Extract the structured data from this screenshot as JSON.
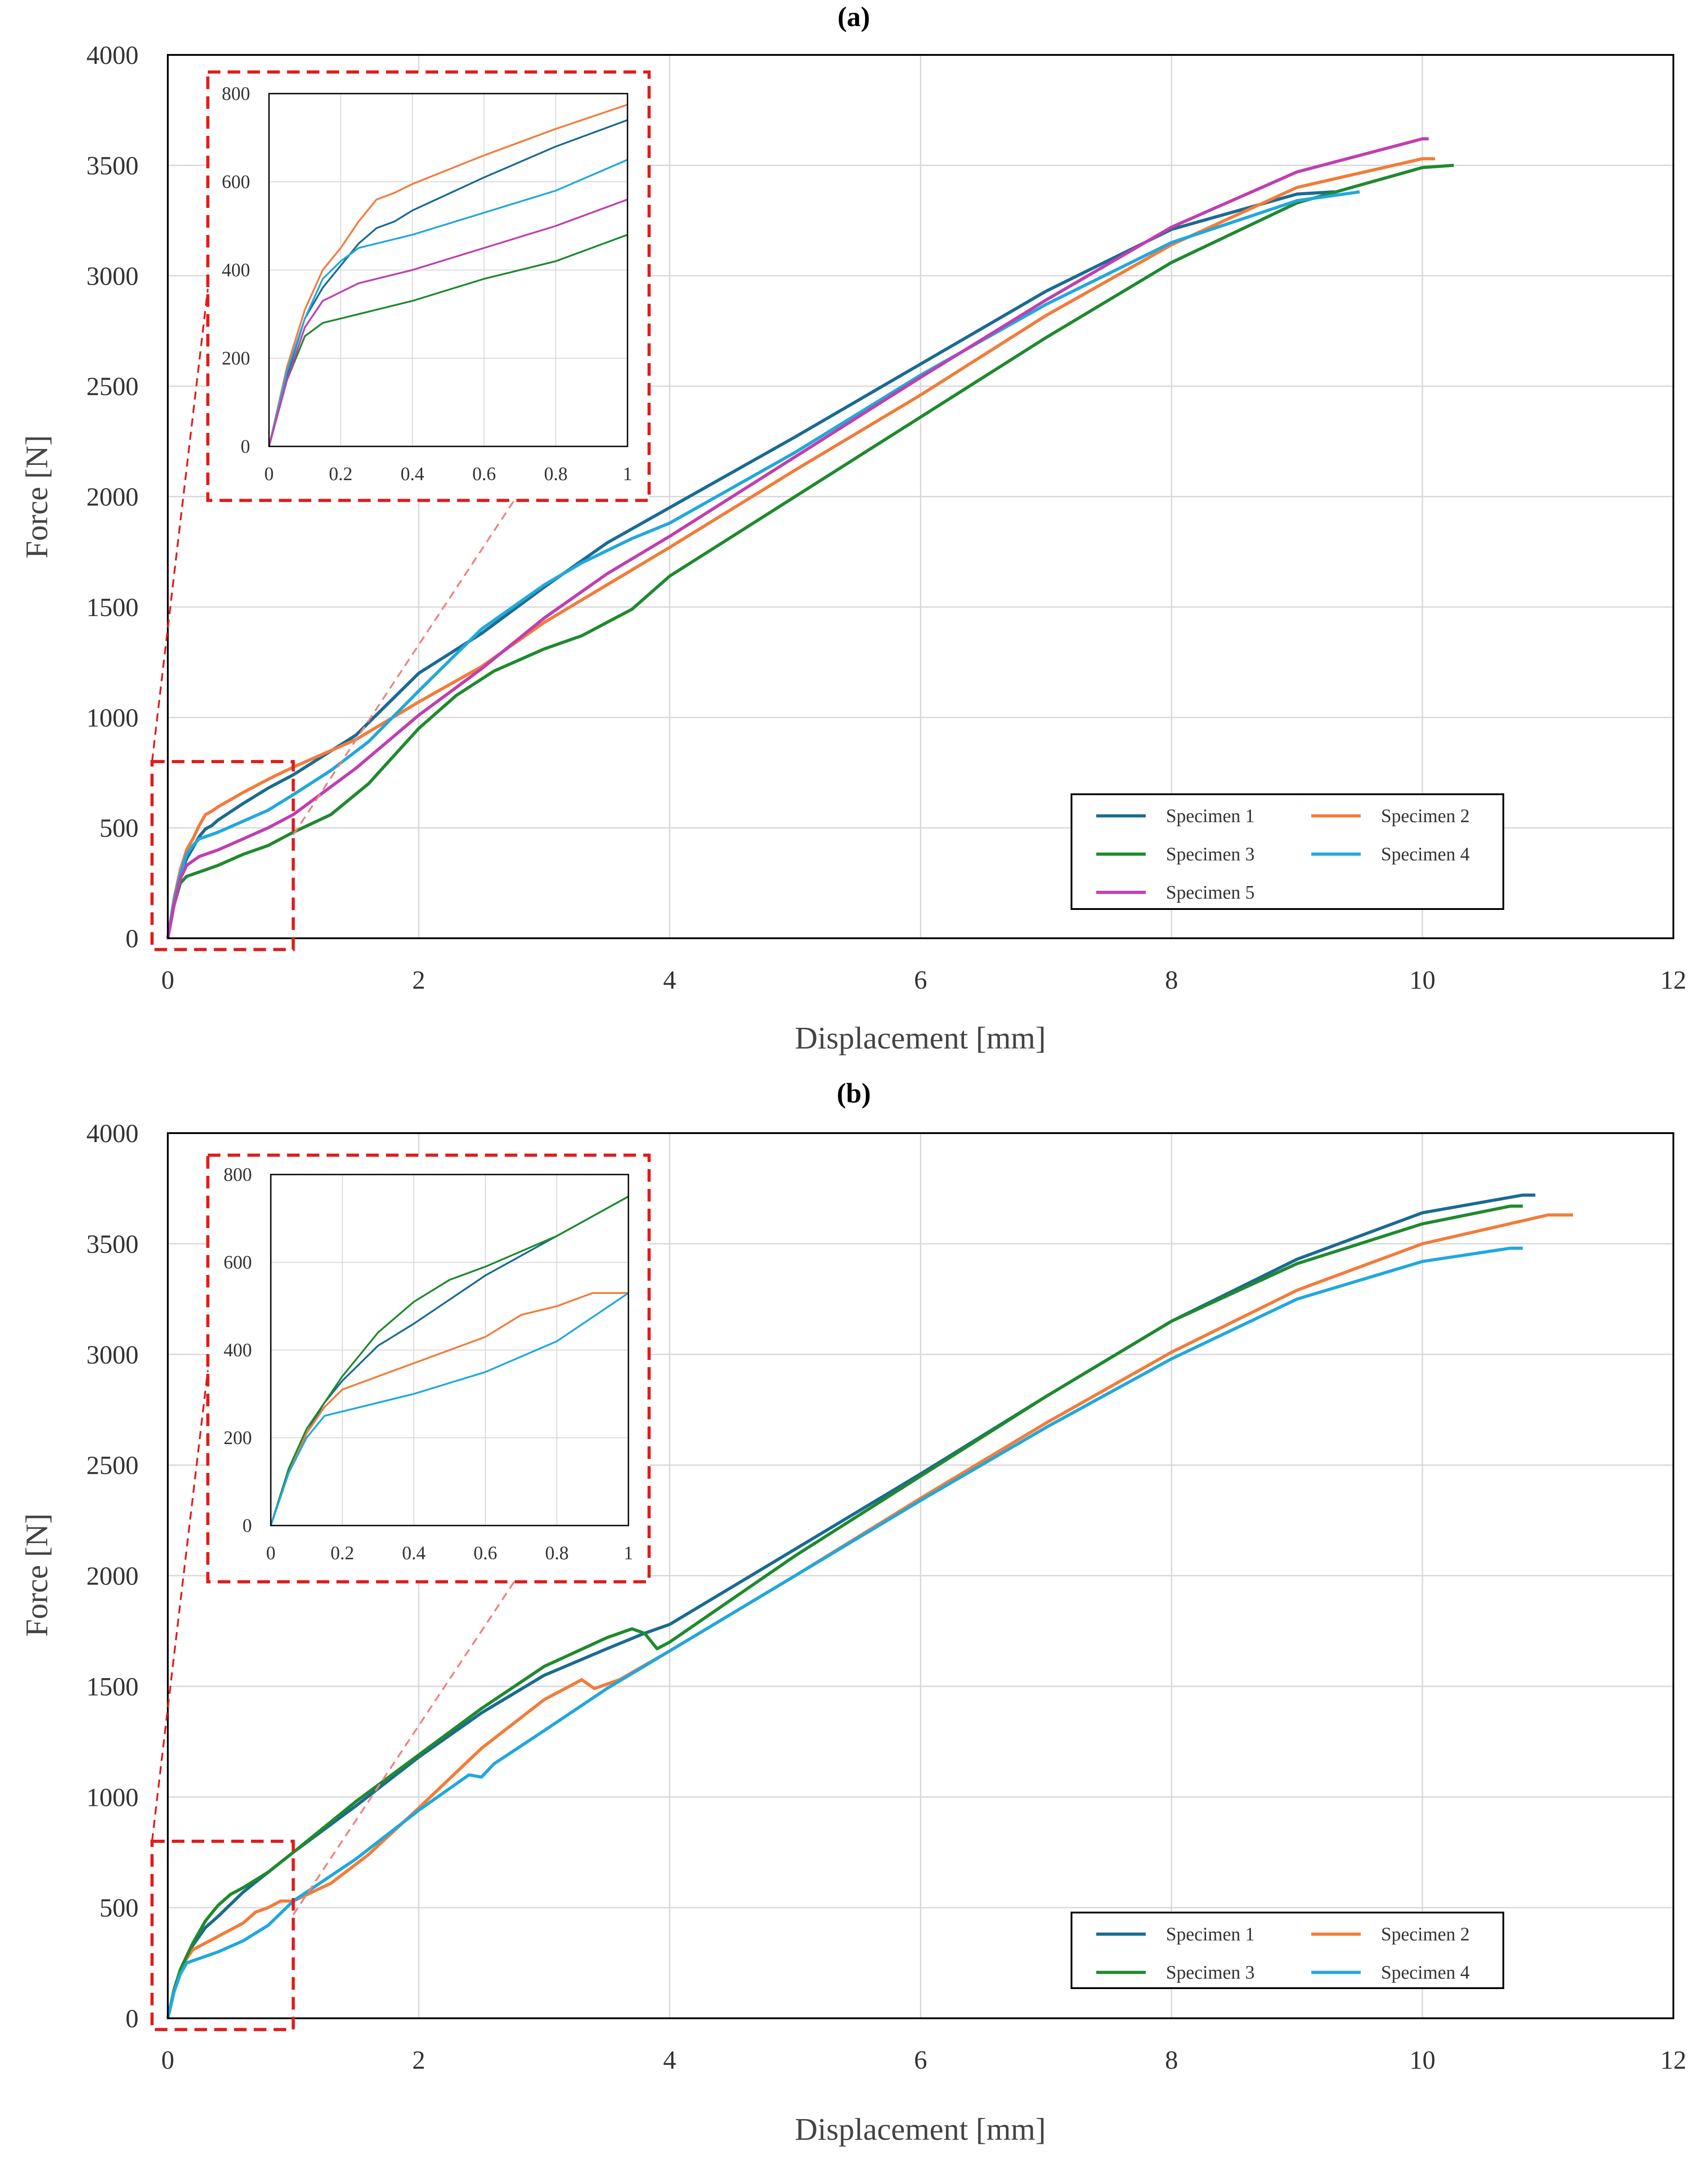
{
  "figure": {
    "panels": [
      "(a)",
      "(b)"
    ]
  },
  "colors": {
    "specimen1": "#1a6b92",
    "specimen2": "#f27c3a",
    "specimen3": "#1f8a2e",
    "specimen4": "#21a8dd",
    "specimen5": "#c03fb0",
    "grid": "#d9d9d9",
    "zoom_box": "#e11b1b"
  },
  "chart_data": [
    {
      "type": "line",
      "panel_label": "(a)",
      "xlabel": "Displacement [mm]",
      "ylabel": "Force [N]",
      "xlim": [
        0,
        12
      ],
      "ylim": [
        0,
        4000
      ],
      "xticks": [
        "0",
        "2",
        "4",
        "6",
        "8",
        "10",
        "12"
      ],
      "yticks": [
        "0",
        "500",
        "1000",
        "1500",
        "2000",
        "2500",
        "3000",
        "3500",
        "4000"
      ],
      "grid": true,
      "legend_position": "bottom-right",
      "series": [
        {
          "name": "Specimen 1",
          "color": "#1a6b92",
          "x": [
            0,
            0.05,
            0.1,
            0.15,
            0.2,
            0.25,
            0.3,
            0.35,
            0.4,
            0.6,
            0.8,
            1,
            1.5,
            2,
            2.5,
            3,
            3.5,
            4,
            5,
            6,
            7,
            8,
            9,
            9.3
          ],
          "y": [
            0,
            160,
            290,
            360,
            410,
            460,
            495,
            510,
            535,
            610,
            680,
            740,
            920,
            1200,
            1380,
            1590,
            1790,
            1950,
            2270,
            2600,
            2930,
            3210,
            3370,
            3380
          ]
        },
        {
          "name": "Specimen 2",
          "color": "#f27c3a",
          "x": [
            0,
            0.05,
            0.1,
            0.15,
            0.2,
            0.25,
            0.3,
            0.35,
            0.4,
            0.6,
            0.8,
            1,
            1.5,
            2,
            2.5,
            3,
            3.5,
            4,
            5,
            6,
            7,
            8,
            9,
            10,
            10.1
          ],
          "y": [
            0,
            180,
            310,
            400,
            450,
            510,
            560,
            575,
            595,
            660,
            720,
            775,
            900,
            1070,
            1230,
            1430,
            1600,
            1770,
            2120,
            2460,
            2820,
            3140,
            3400,
            3530,
            3530
          ]
        },
        {
          "name": "Specimen 3",
          "color": "#1f8a2e",
          "x": [
            0,
            0.05,
            0.1,
            0.15,
            0.2,
            0.25,
            0.3,
            0.4,
            0.6,
            0.8,
            1,
            1.3,
            1.6,
            2,
            2.3,
            2.6,
            3,
            3.3,
            3.7,
            4,
            5,
            6,
            7,
            8,
            9,
            10,
            10.25
          ],
          "y": [
            0,
            150,
            250,
            280,
            290,
            300,
            310,
            330,
            380,
            420,
            480,
            560,
            700,
            950,
            1100,
            1210,
            1310,
            1370,
            1490,
            1640,
            2000,
            2360,
            2720,
            3060,
            3330,
            3490,
            3500
          ]
        },
        {
          "name": "Specimen 4",
          "color": "#21a8dd",
          "x": [
            0,
            0.05,
            0.1,
            0.15,
            0.2,
            0.25,
            0.3,
            0.4,
            0.6,
            0.8,
            1,
            1.3,
            1.6,
            2,
            2.5,
            3,
            3.3,
            3.7,
            4,
            5,
            6,
            7,
            8,
            9,
            9.5
          ],
          "y": [
            0,
            170,
            290,
            380,
            420,
            450,
            460,
            480,
            530,
            580,
            650,
            760,
            890,
            1120,
            1400,
            1600,
            1700,
            1810,
            1880,
            2200,
            2550,
            2870,
            3150,
            3340,
            3380
          ]
        },
        {
          "name": "Specimen 5",
          "color": "#c03fb0",
          "x": [
            0,
            0.05,
            0.1,
            0.15,
            0.2,
            0.25,
            0.3,
            0.4,
            0.6,
            0.8,
            1,
            1.5,
            2,
            2.5,
            3,
            3.5,
            4,
            5,
            6,
            7,
            8,
            9,
            10,
            10.05
          ],
          "y": [
            0,
            150,
            270,
            330,
            350,
            370,
            380,
            400,
            450,
            500,
            560,
            770,
            1010,
            1220,
            1450,
            1650,
            1820,
            2180,
            2540,
            2890,
            3220,
            3470,
            3620,
            3620
          ]
        }
      ],
      "inset": {
        "xlim": [
          0,
          1
        ],
        "ylim": [
          0,
          800
        ],
        "xticks": [
          "0",
          "0.2",
          "0.4",
          "0.6",
          "0.8",
          "1"
        ],
        "yticks": [
          "0",
          "200",
          "400",
          "600",
          "800"
        ],
        "zoom_region": {
          "x": [
            0,
            1
          ],
          "y": [
            0,
            800
          ]
        }
      }
    },
    {
      "type": "line",
      "panel_label": "(b)",
      "xlabel": "Displacement [mm]",
      "ylabel": "Force [N]",
      "xlim": [
        0,
        12
      ],
      "ylim": [
        0,
        4000
      ],
      "xticks": [
        "0",
        "2",
        "4",
        "6",
        "8",
        "10",
        "12"
      ],
      "yticks": [
        "0",
        "500",
        "1000",
        "1500",
        "2000",
        "2500",
        "3000",
        "3500",
        "4000"
      ],
      "grid": true,
      "legend_position": "bottom-right",
      "series": [
        {
          "name": "Specimen 1",
          "color": "#1a6b92",
          "x": [
            0,
            0.05,
            0.1,
            0.15,
            0.2,
            0.3,
            0.4,
            0.6,
            0.8,
            1,
            1.5,
            2,
            2.5,
            3,
            3.5,
            3.8,
            4,
            5,
            6,
            7,
            8,
            9,
            10,
            10.8,
            10.9
          ],
          "y": [
            0,
            120,
            210,
            280,
            330,
            410,
            460,
            570,
            660,
            750,
            960,
            1180,
            1380,
            1550,
            1670,
            1740,
            1780,
            2120,
            2460,
            2810,
            3150,
            3430,
            3640,
            3720,
            3720
          ]
        },
        {
          "name": "Specimen 2",
          "color": "#f27c3a",
          "x": [
            0,
            0.05,
            0.1,
            0.15,
            0.2,
            0.3,
            0.4,
            0.6,
            0.7,
            0.8,
            0.9,
            1,
            1.3,
            1.6,
            2,
            2.5,
            3,
            3.3,
            3.4,
            3.6,
            4,
            5,
            6,
            7,
            8,
            9,
            10,
            11,
            11.2
          ],
          "y": [
            0,
            120,
            210,
            270,
            310,
            340,
            370,
            430,
            480,
            500,
            530,
            530,
            610,
            740,
            950,
            1220,
            1440,
            1530,
            1490,
            1530,
            1660,
            2000,
            2350,
            2690,
            3010,
            3290,
            3500,
            3630,
            3630
          ]
        },
        {
          "name": "Specimen 3",
          "color": "#1f8a2e",
          "x": [
            0,
            0.05,
            0.1,
            0.15,
            0.2,
            0.3,
            0.4,
            0.5,
            0.6,
            0.8,
            1,
            1.5,
            2,
            2.5,
            3,
            3.5,
            3.7,
            3.8,
            3.9,
            4,
            5,
            6,
            7,
            8,
            9,
            10,
            10.7,
            10.8
          ],
          "y": [
            0,
            130,
            220,
            280,
            340,
            440,
            510,
            560,
            590,
            660,
            750,
            980,
            1190,
            1400,
            1590,
            1720,
            1760,
            1740,
            1670,
            1700,
            2090,
            2450,
            2810,
            3150,
            3410,
            3590,
            3670,
            3670
          ]
        },
        {
          "name": "Specimen 4",
          "color": "#21a8dd",
          "x": [
            0,
            0.05,
            0.1,
            0.15,
            0.2,
            0.3,
            0.4,
            0.6,
            0.8,
            1,
            1.5,
            2,
            2.4,
            2.5,
            2.6,
            3,
            3.5,
            4,
            5,
            6,
            7,
            8,
            9,
            10,
            10.7,
            10.8
          ],
          "y": [
            0,
            120,
            200,
            250,
            260,
            280,
            300,
            350,
            420,
            530,
            720,
            940,
            1100,
            1090,
            1150,
            1300,
            1490,
            1660,
            2000,
            2340,
            2670,
            2980,
            3250,
            3420,
            3480,
            3480
          ]
        }
      ],
      "inset": {
        "xlim": [
          0,
          1
        ],
        "ylim": [
          0,
          800
        ],
        "xticks": [
          "0",
          "0.2",
          "0.4",
          "0.6",
          "0.8",
          "1"
        ],
        "yticks": [
          "0",
          "200",
          "400",
          "600",
          "800"
        ],
        "zoom_region": {
          "x": [
            0,
            1
          ],
          "y": [
            0,
            800
          ]
        }
      }
    }
  ]
}
